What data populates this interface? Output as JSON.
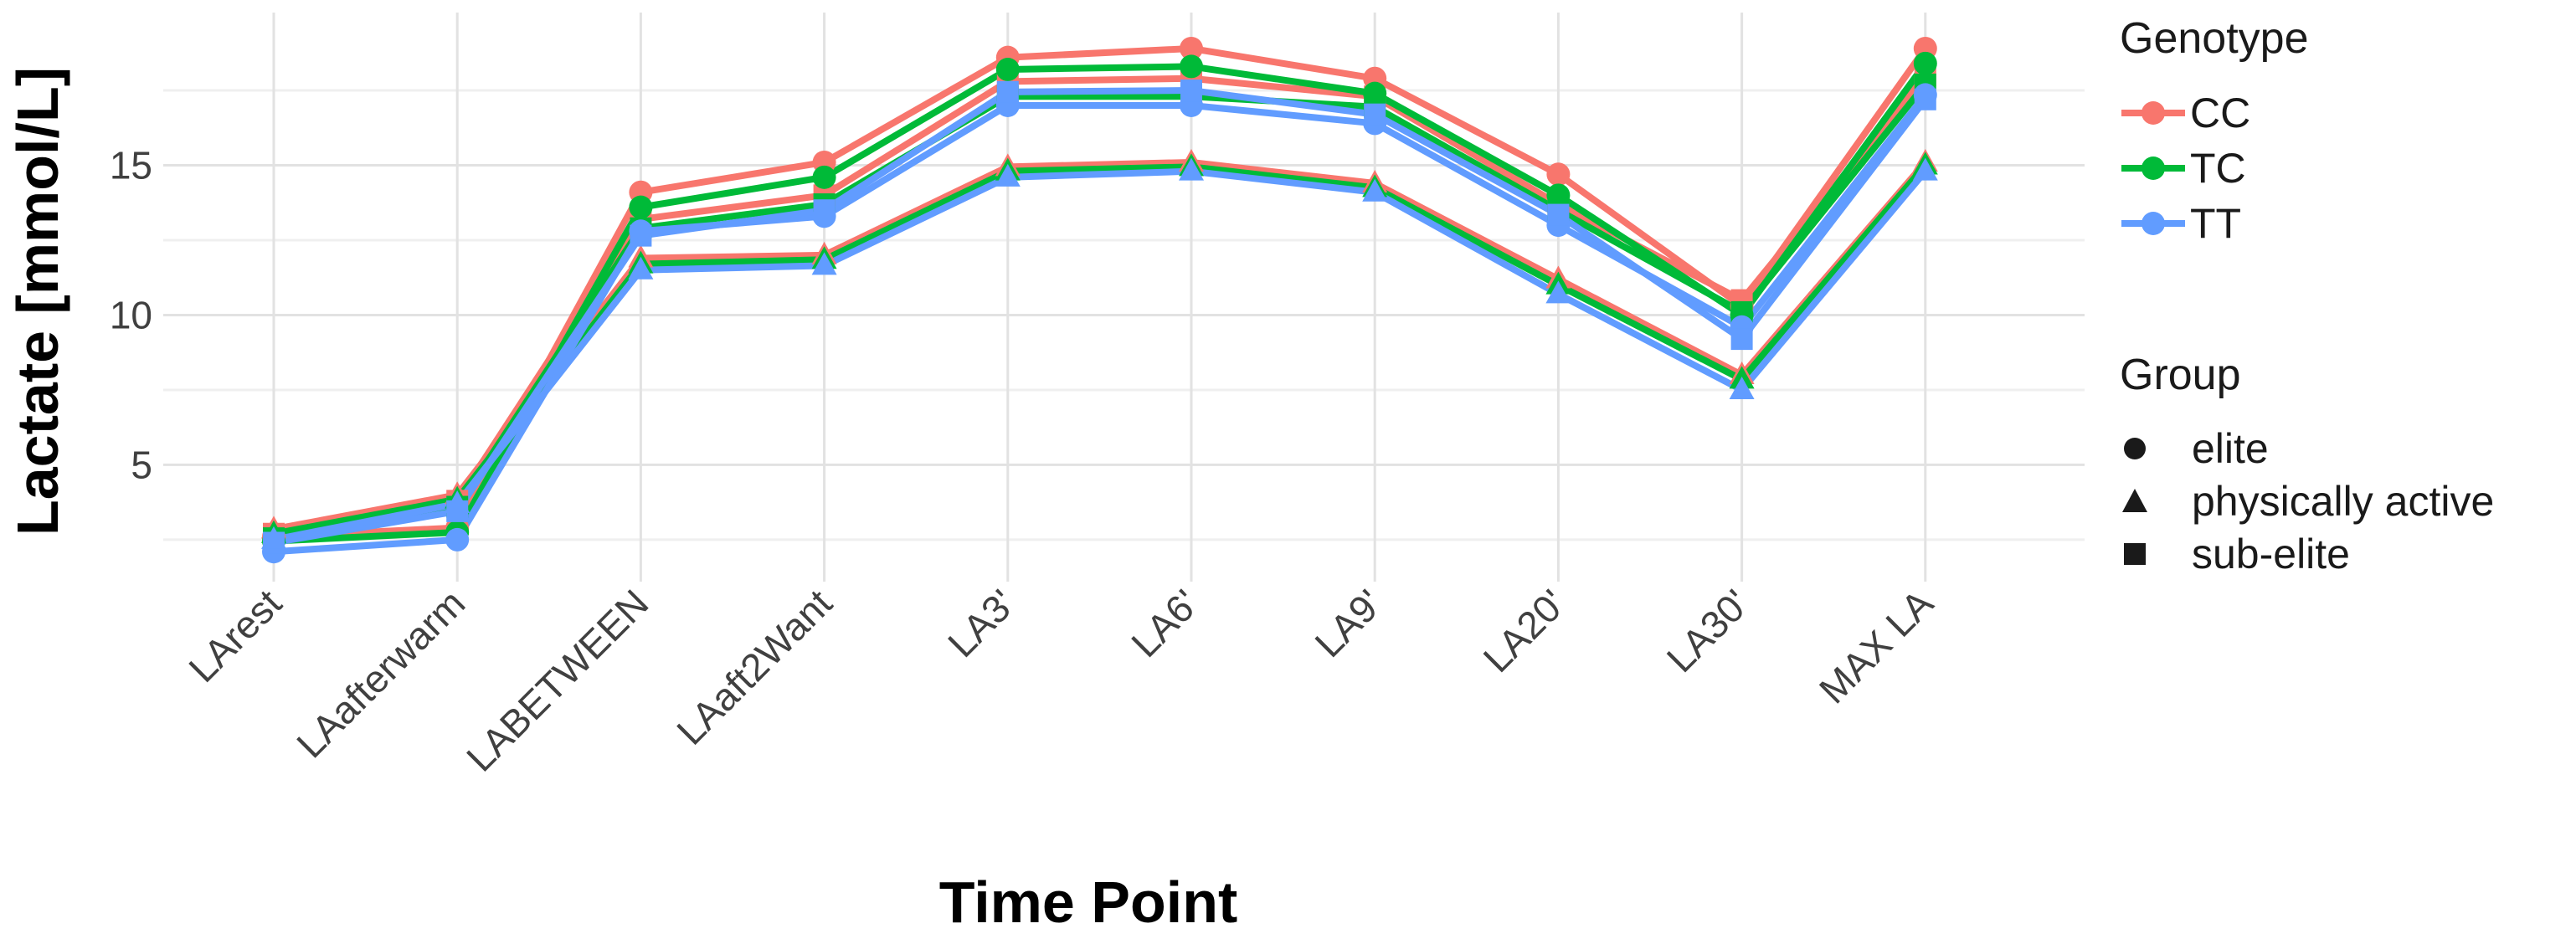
{
  "figure": {
    "y_axis": {
      "title": "Lactate [mmol/L]",
      "tick_labels": [
        "5",
        "10",
        "15"
      ]
    },
    "x_axis": {
      "title": "Time Point"
    },
    "legend": {
      "genotype": {
        "title": "Genotype",
        "items": [
          {
            "label": "CC",
            "color": "#F8766D"
          },
          {
            "label": "TC",
            "color": "#00BA38"
          },
          {
            "label": "TT",
            "color": "#619CFF"
          }
        ]
      },
      "group": {
        "title": "Group",
        "items": [
          {
            "label": "elite",
            "marker": "circle"
          },
          {
            "label": "physically active",
            "marker": "triangle"
          },
          {
            "label": "sub-elite",
            "marker": "square"
          }
        ]
      }
    }
  },
  "chart_data": {
    "type": "line",
    "title": "",
    "xlabel": "Time Point",
    "ylabel": "Lactate [mmol/L]",
    "categories": [
      "LArest",
      "LAafterwarm",
      "LABETWEEN",
      "LAaft2Want",
      "LA3'",
      "LA6'",
      "LA9'",
      "LA20'",
      "LA30'",
      "MAX LA"
    ],
    "ylim": [
      1.1,
      20.1
    ],
    "yticks": [
      5,
      10,
      15
    ],
    "yticks_minor": [
      2.5,
      7.5,
      12.5,
      17.5
    ],
    "grid": true,
    "legend_position": "right",
    "colors": {
      "CC": "#F8766D",
      "TC": "#00BA38",
      "TT": "#619CFF"
    },
    "markers_by_group": {
      "elite": "circle",
      "physically active": "triangle",
      "sub-elite": "square"
    },
    "series": [
      {
        "name": "CC elite",
        "genotype": "CC",
        "group": "elite",
        "marker": "circle",
        "color": "#F8766D",
        "values": [
          2.6,
          2.9,
          14.1,
          15.1,
          18.6,
          18.9,
          17.9,
          14.7,
          10.3,
          18.9
        ]
      },
      {
        "name": "CC sub-elite",
        "genotype": "CC",
        "group": "sub-elite",
        "marker": "square",
        "color": "#F8766D",
        "values": [
          2.7,
          3.8,
          13.2,
          14.0,
          17.8,
          17.9,
          17.3,
          13.7,
          10.5,
          18.0
        ]
      },
      {
        "name": "CC physically active",
        "genotype": "CC",
        "group": "physically active",
        "marker": "triangle",
        "color": "#F8766D",
        "values": [
          2.85,
          4.0,
          11.9,
          12.0,
          14.95,
          15.1,
          14.4,
          11.2,
          8.0,
          15.1
        ]
      },
      {
        "name": "TC elite",
        "genotype": "TC",
        "group": "elite",
        "marker": "circle",
        "color": "#00BA38",
        "values": [
          2.45,
          2.75,
          13.6,
          14.6,
          18.2,
          18.3,
          17.4,
          14.0,
          10.0,
          18.4
        ]
      },
      {
        "name": "TC sub-elite",
        "genotype": "TC",
        "group": "sub-elite",
        "marker": "square",
        "color": "#00BA38",
        "values": [
          2.55,
          3.6,
          12.9,
          13.7,
          17.3,
          17.3,
          16.95,
          13.5,
          10.1,
          17.7
        ]
      },
      {
        "name": "TC physically active",
        "genotype": "TC",
        "group": "physically active",
        "marker": "triangle",
        "color": "#00BA38",
        "values": [
          2.7,
          3.85,
          11.7,
          11.85,
          14.8,
          14.95,
          14.25,
          11.0,
          7.85,
          15.0
        ]
      },
      {
        "name": "TT elite",
        "genotype": "TT",
        "group": "elite",
        "marker": "circle",
        "color": "#619CFF",
        "values": [
          2.1,
          2.5,
          12.8,
          13.3,
          17.0,
          17.0,
          16.4,
          13.0,
          9.6,
          17.35
        ]
      },
      {
        "name": "TT sub-elite",
        "genotype": "TT",
        "group": "sub-elite",
        "marker": "square",
        "color": "#619CFF",
        "values": [
          2.4,
          3.45,
          12.65,
          13.5,
          17.45,
          17.5,
          16.7,
          13.35,
          9.2,
          17.2
        ]
      },
      {
        "name": "TT physically active",
        "genotype": "TT",
        "group": "physically active",
        "marker": "triangle",
        "color": "#619CFF",
        "values": [
          2.5,
          3.7,
          11.5,
          11.65,
          14.6,
          14.8,
          14.1,
          10.7,
          7.5,
          14.8
        ]
      }
    ]
  }
}
